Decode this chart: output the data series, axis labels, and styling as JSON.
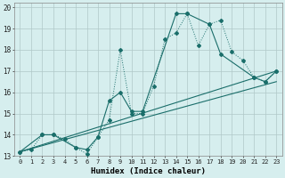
{
  "xlabel": "Humidex (Indice chaleur)",
  "ylabel": "",
  "xlim": [
    -0.5,
    23.5
  ],
  "ylim": [
    13,
    20.2
  ],
  "yticks": [
    13,
    14,
    15,
    16,
    17,
    18,
    19,
    20
  ],
  "xticks": [
    0,
    1,
    2,
    3,
    4,
    5,
    6,
    7,
    8,
    9,
    10,
    11,
    12,
    13,
    14,
    15,
    16,
    17,
    18,
    19,
    20,
    21,
    22,
    23
  ],
  "background_color": "#d6eeee",
  "line_color": "#1a6e6a",
  "grid_color": "#b0c8c8",
  "series_dotted": {
    "x": [
      0,
      1,
      2,
      3,
      4,
      5,
      6,
      7,
      8,
      9,
      10,
      11,
      12,
      13,
      14,
      15,
      16,
      17,
      18,
      19,
      20,
      21,
      22,
      23
    ],
    "y": [
      13.2,
      13.3,
      14.0,
      14.0,
      13.8,
      13.4,
      13.1,
      13.9,
      14.7,
      18.0,
      15.0,
      15.0,
      16.3,
      18.5,
      18.8,
      19.7,
      18.2,
      19.2,
      19.4,
      17.9,
      17.5,
      16.7,
      16.5,
      17.0
    ]
  },
  "series_solid": {
    "x": [
      0,
      2,
      3,
      5,
      6,
      7,
      8,
      9,
      10,
      11,
      14,
      15,
      17,
      18,
      21,
      22,
      23
    ],
    "y": [
      13.2,
      14.0,
      14.0,
      13.4,
      13.3,
      13.9,
      15.6,
      16.0,
      15.1,
      15.1,
      19.7,
      19.7,
      19.2,
      17.8,
      16.7,
      16.5,
      17.0
    ]
  },
  "regression1": {
    "x": [
      0,
      23
    ],
    "y": [
      13.2,
      17.0
    ]
  },
  "regression2": {
    "x": [
      0,
      23
    ],
    "y": [
      13.2,
      16.5
    ]
  }
}
